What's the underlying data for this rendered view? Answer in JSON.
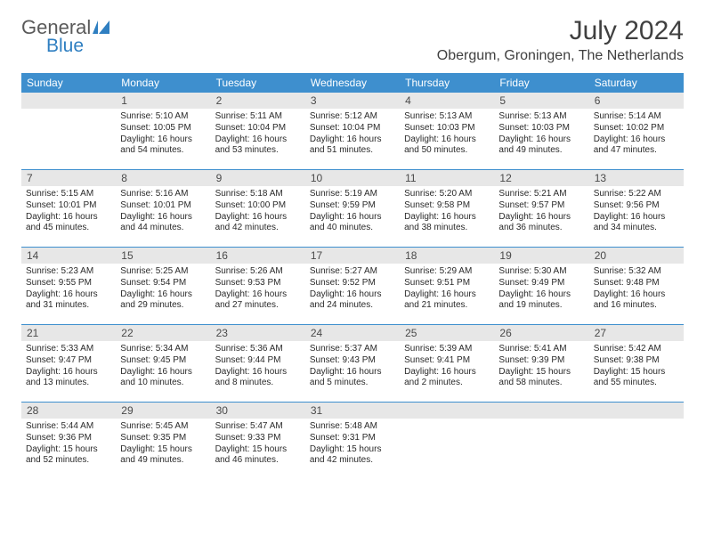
{
  "logo": {
    "part1": "General",
    "part2": "Blue"
  },
  "title": "July 2024",
  "subtitle": "Obergum, Groningen, The Netherlands",
  "colors": {
    "header_bg": "#3e8fce",
    "daynum_bg": "#e7e7e7",
    "rule": "#3e8fce",
    "text": "#2a2a2a",
    "title_color": "#404040",
    "logo_gray": "#5a5a5a",
    "logo_blue": "#2f7fc1",
    "background": "#ffffff"
  },
  "typography": {
    "title_fontsize": 30,
    "subtitle_fontsize": 16,
    "dayhdr_fontsize": 12,
    "daynum_fontsize": 12,
    "info_fontsize": 10
  },
  "dayNames": [
    "Sunday",
    "Monday",
    "Tuesday",
    "Wednesday",
    "Thursday",
    "Friday",
    "Saturday"
  ],
  "weeks": [
    [
      null,
      {
        "n": "1",
        "sunrise": "5:10 AM",
        "sunset": "10:05 PM",
        "dl": "16 hours and 54 minutes."
      },
      {
        "n": "2",
        "sunrise": "5:11 AM",
        "sunset": "10:04 PM",
        "dl": "16 hours and 53 minutes."
      },
      {
        "n": "3",
        "sunrise": "5:12 AM",
        "sunset": "10:04 PM",
        "dl": "16 hours and 51 minutes."
      },
      {
        "n": "4",
        "sunrise": "5:13 AM",
        "sunset": "10:03 PM",
        "dl": "16 hours and 50 minutes."
      },
      {
        "n": "5",
        "sunrise": "5:13 AM",
        "sunset": "10:03 PM",
        "dl": "16 hours and 49 minutes."
      },
      {
        "n": "6",
        "sunrise": "5:14 AM",
        "sunset": "10:02 PM",
        "dl": "16 hours and 47 minutes."
      }
    ],
    [
      {
        "n": "7",
        "sunrise": "5:15 AM",
        "sunset": "10:01 PM",
        "dl": "16 hours and 45 minutes."
      },
      {
        "n": "8",
        "sunrise": "5:16 AM",
        "sunset": "10:01 PM",
        "dl": "16 hours and 44 minutes."
      },
      {
        "n": "9",
        "sunrise": "5:18 AM",
        "sunset": "10:00 PM",
        "dl": "16 hours and 42 minutes."
      },
      {
        "n": "10",
        "sunrise": "5:19 AM",
        "sunset": "9:59 PM",
        "dl": "16 hours and 40 minutes."
      },
      {
        "n": "11",
        "sunrise": "5:20 AM",
        "sunset": "9:58 PM",
        "dl": "16 hours and 38 minutes."
      },
      {
        "n": "12",
        "sunrise": "5:21 AM",
        "sunset": "9:57 PM",
        "dl": "16 hours and 36 minutes."
      },
      {
        "n": "13",
        "sunrise": "5:22 AM",
        "sunset": "9:56 PM",
        "dl": "16 hours and 34 minutes."
      }
    ],
    [
      {
        "n": "14",
        "sunrise": "5:23 AM",
        "sunset": "9:55 PM",
        "dl": "16 hours and 31 minutes."
      },
      {
        "n": "15",
        "sunrise": "5:25 AM",
        "sunset": "9:54 PM",
        "dl": "16 hours and 29 minutes."
      },
      {
        "n": "16",
        "sunrise": "5:26 AM",
        "sunset": "9:53 PM",
        "dl": "16 hours and 27 minutes."
      },
      {
        "n": "17",
        "sunrise": "5:27 AM",
        "sunset": "9:52 PM",
        "dl": "16 hours and 24 minutes."
      },
      {
        "n": "18",
        "sunrise": "5:29 AM",
        "sunset": "9:51 PM",
        "dl": "16 hours and 21 minutes."
      },
      {
        "n": "19",
        "sunrise": "5:30 AM",
        "sunset": "9:49 PM",
        "dl": "16 hours and 19 minutes."
      },
      {
        "n": "20",
        "sunrise": "5:32 AM",
        "sunset": "9:48 PM",
        "dl": "16 hours and 16 minutes."
      }
    ],
    [
      {
        "n": "21",
        "sunrise": "5:33 AM",
        "sunset": "9:47 PM",
        "dl": "16 hours and 13 minutes."
      },
      {
        "n": "22",
        "sunrise": "5:34 AM",
        "sunset": "9:45 PM",
        "dl": "16 hours and 10 minutes."
      },
      {
        "n": "23",
        "sunrise": "5:36 AM",
        "sunset": "9:44 PM",
        "dl": "16 hours and 8 minutes."
      },
      {
        "n": "24",
        "sunrise": "5:37 AM",
        "sunset": "9:43 PM",
        "dl": "16 hours and 5 minutes."
      },
      {
        "n": "25",
        "sunrise": "5:39 AM",
        "sunset": "9:41 PM",
        "dl": "16 hours and 2 minutes."
      },
      {
        "n": "26",
        "sunrise": "5:41 AM",
        "sunset": "9:39 PM",
        "dl": "15 hours and 58 minutes."
      },
      {
        "n": "27",
        "sunrise": "5:42 AM",
        "sunset": "9:38 PM",
        "dl": "15 hours and 55 minutes."
      }
    ],
    [
      {
        "n": "28",
        "sunrise": "5:44 AM",
        "sunset": "9:36 PM",
        "dl": "15 hours and 52 minutes."
      },
      {
        "n": "29",
        "sunrise": "5:45 AM",
        "sunset": "9:35 PM",
        "dl": "15 hours and 49 minutes."
      },
      {
        "n": "30",
        "sunrise": "5:47 AM",
        "sunset": "9:33 PM",
        "dl": "15 hours and 46 minutes."
      },
      {
        "n": "31",
        "sunrise": "5:48 AM",
        "sunset": "9:31 PM",
        "dl": "15 hours and 42 minutes."
      },
      null,
      null,
      null
    ]
  ],
  "labels": {
    "sunrise": "Sunrise:",
    "sunset": "Sunset:",
    "daylight": "Daylight:"
  }
}
